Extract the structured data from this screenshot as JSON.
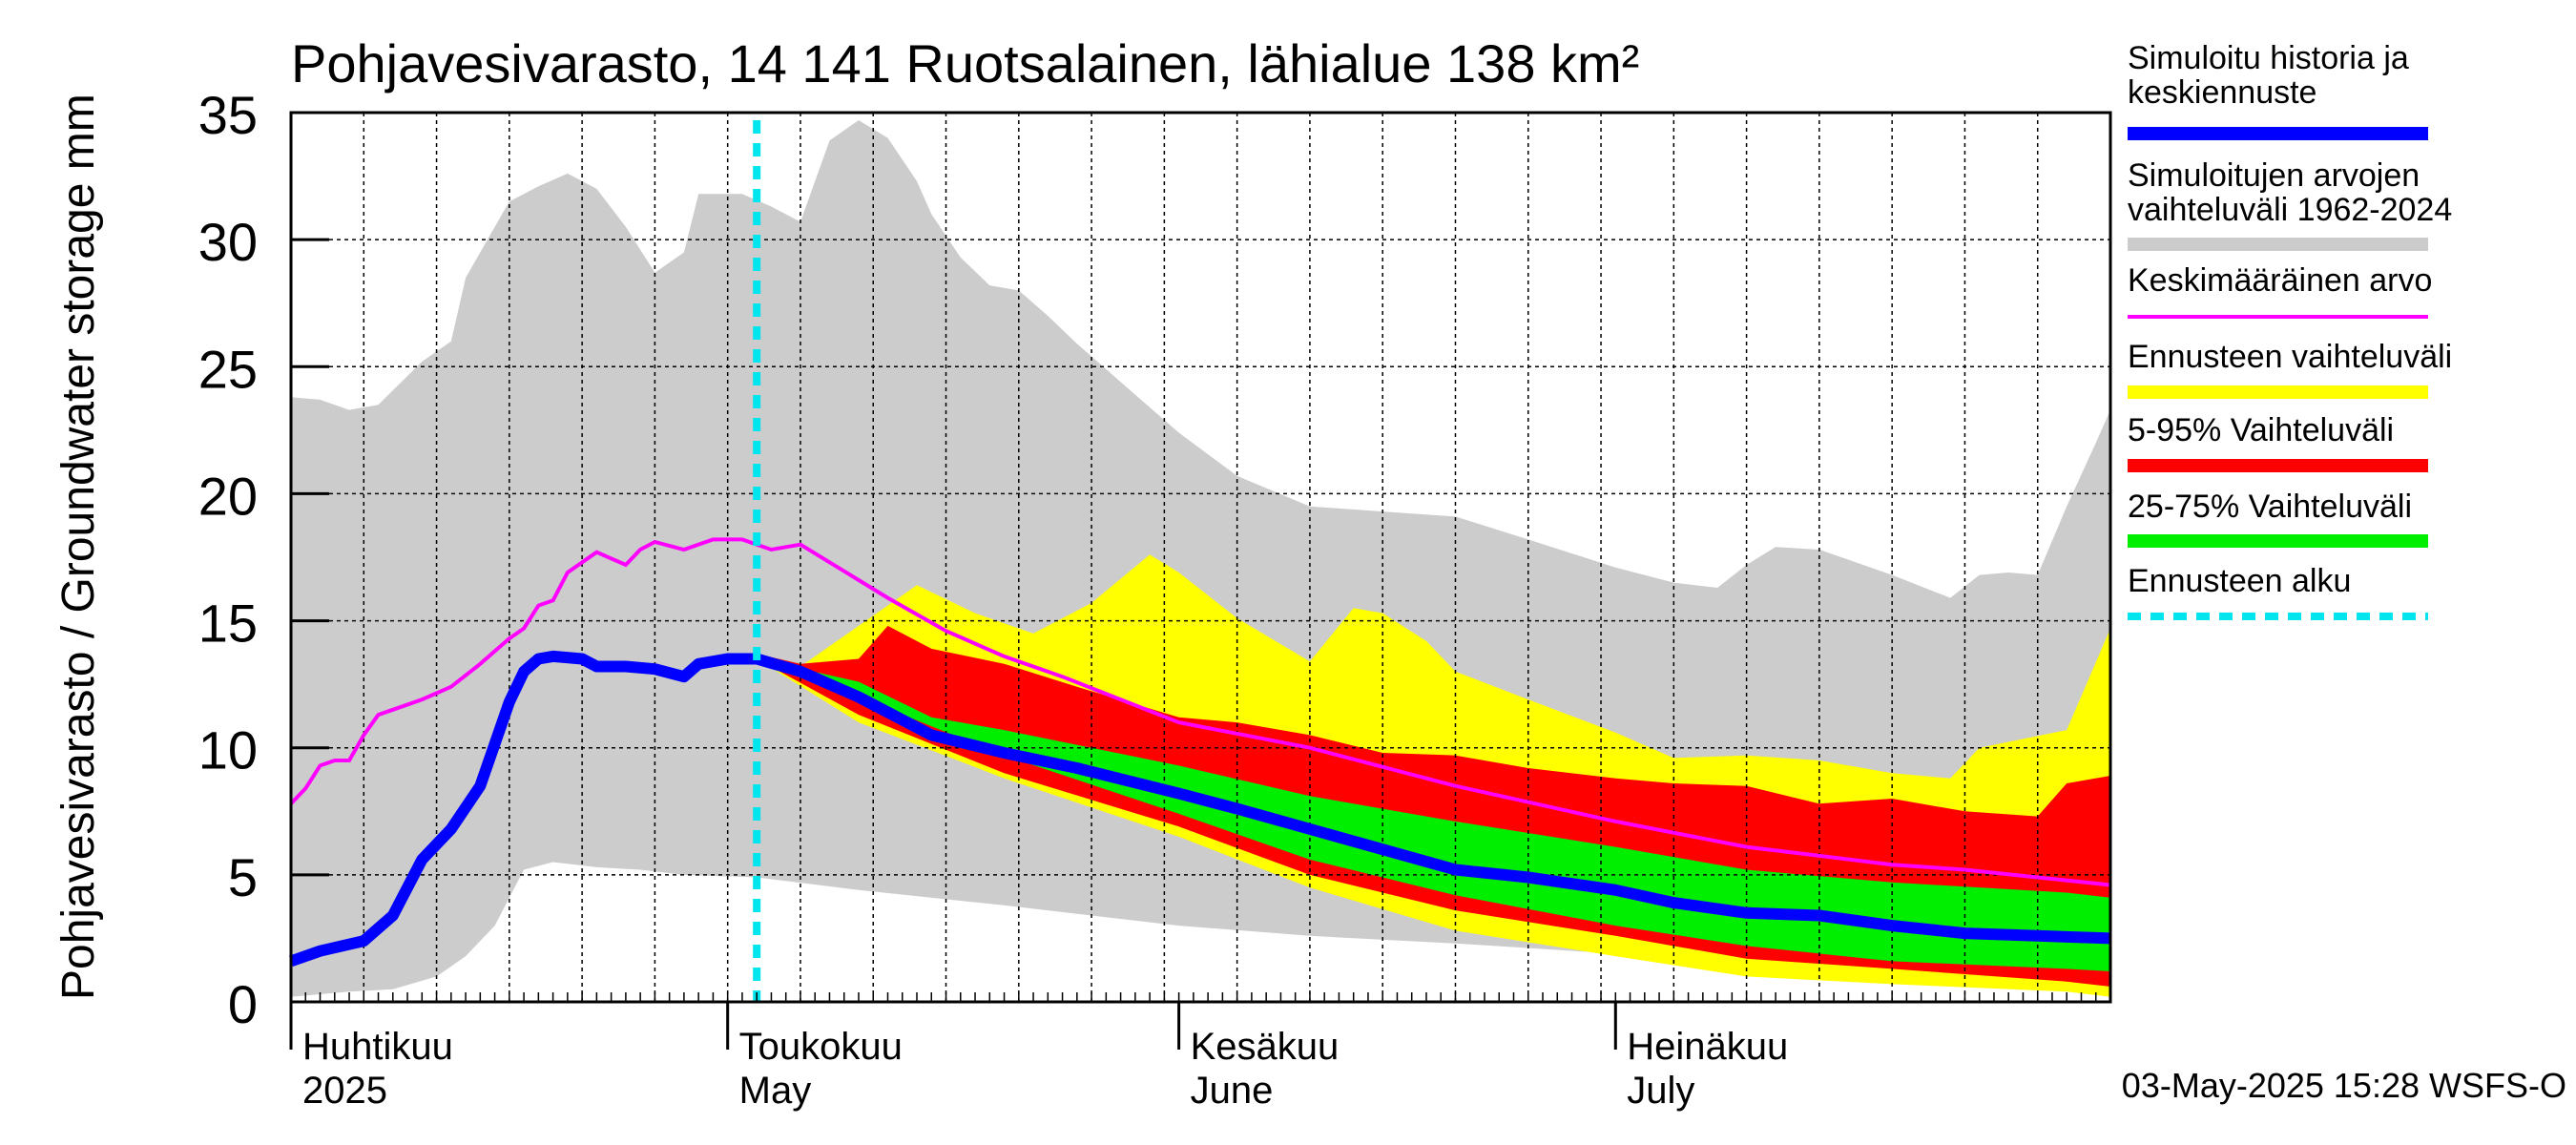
{
  "chart_data": {
    "type": "area",
    "title": "Pohjavesivarasto, 14 141 Ruotsalainen, lähialue 138 km²",
    "ylabel": "Pohjavesivarasto / Groundwater storage   mm",
    "ylim": [
      0,
      35
    ],
    "y_ticks": [
      0,
      5,
      10,
      15,
      20,
      25,
      30,
      35
    ],
    "y_tick_labels": [
      "0",
      "5",
      "10",
      "15",
      "20",
      "25",
      "30",
      "35"
    ],
    "x_range": [
      "2025-04-01",
      "2025-08-04"
    ],
    "x_labels": [
      {
        "date": "2025-04-01",
        "line1": "Huhtikuu",
        "line2": "2025"
      },
      {
        "date": "2025-05-01",
        "line1": "Toukokuu",
        "line2": "May"
      },
      {
        "date": "2025-06-01",
        "line1": "Kesäkuu",
        "line2": "June"
      },
      {
        "date": "2025-07-01",
        "line1": "Heinäkuu",
        "line2": "July"
      }
    ],
    "grid": true,
    "forecast_start": "2025-05-03",
    "footer": "03-May-2025 15:28 WSFS-O",
    "legend_position": "right",
    "legend": [
      {
        "key": "history",
        "label_lines": [
          "Simuloitu historia ja",
          "keskiennuste"
        ],
        "color": "#0000ff"
      },
      {
        "key": "range",
        "label_lines": [
          "Simuloitujen arvojen",
          "vaihteluväli 1962-2024"
        ],
        "color": "#cccccc"
      },
      {
        "key": "mean",
        "label_lines": [
          "Keskimääräinen arvo"
        ],
        "color": "#ff00ff"
      },
      {
        "key": "forecast_range",
        "label_lines": [
          "Ennusteen vaihteluväli"
        ],
        "color": "#ffff00"
      },
      {
        "key": "p5_95",
        "label_lines": [
          "5-95% Vaihteluväli"
        ],
        "color": "#ff0000"
      },
      {
        "key": "p25_75",
        "label_lines": [
          "25-75% Vaihteluväli"
        ],
        "color": "#00ee00"
      },
      {
        "key": "forecast_start",
        "label_lines": [
          "Ennusteen alku"
        ],
        "color": "#00e5ee"
      }
    ],
    "series": [
      {
        "key": "range_upper",
        "dates": [
          "2025-04-01",
          "2025-04-03",
          "2025-04-05",
          "2025-04-07",
          "2025-04-10",
          "2025-04-12",
          "2025-04-13",
          "2025-04-16",
          "2025-04-18",
          "2025-04-20",
          "2025-04-22",
          "2025-04-24",
          "2025-04-26",
          "2025-04-28",
          "2025-04-29",
          "2025-05-02",
          "2025-05-04",
          "2025-05-06",
          "2025-05-08",
          "2025-05-10",
          "2025-05-12",
          "2025-05-14",
          "2025-05-15",
          "2025-05-17",
          "2025-05-19",
          "2025-05-21",
          "2025-05-23",
          "2025-05-25",
          "2025-05-27",
          "2025-05-29",
          "2025-06-01",
          "2025-06-05",
          "2025-06-10",
          "2025-06-15",
          "2025-06-20",
          "2025-06-25",
          "2025-07-01",
          "2025-07-05",
          "2025-07-08",
          "2025-07-10",
          "2025-07-12",
          "2025-07-15",
          "2025-07-20",
          "2025-07-24",
          "2025-07-26",
          "2025-07-28",
          "2025-07-30",
          "2025-08-01",
          "2025-08-03",
          "2025-08-04"
        ],
        "values": [
          23.8,
          23.7,
          23.3,
          23.5,
          25.2,
          26.0,
          28.5,
          31.5,
          32.1,
          32.6,
          32.0,
          30.5,
          28.7,
          29.5,
          31.8,
          31.8,
          31.3,
          30.7,
          33.9,
          34.7,
          34.0,
          32.3,
          31.0,
          29.3,
          28.2,
          28.0,
          27.0,
          25.9,
          24.9,
          23.9,
          22.4,
          20.7,
          19.5,
          19.3,
          19.1,
          18.2,
          17.1,
          16.5,
          16.3,
          17.2,
          17.9,
          17.8,
          16.8,
          15.9,
          16.8,
          16.9,
          16.8,
          19.5,
          22.0,
          23.3
        ]
      },
      {
        "key": "range_lower",
        "dates": [
          "2025-04-01",
          "2025-04-03",
          "2025-04-05",
          "2025-04-08",
          "2025-04-11",
          "2025-04-13",
          "2025-04-15",
          "2025-04-17",
          "2025-04-19",
          "2025-04-22",
          "2025-04-25",
          "2025-04-28",
          "2025-05-03",
          "2025-05-10",
          "2025-05-20",
          "2025-06-01",
          "2025-06-10",
          "2025-06-20",
          "2025-07-01",
          "2025-07-10",
          "2025-07-20",
          "2025-07-25",
          "2025-08-01",
          "2025-08-04"
        ],
        "values": [
          0.2,
          0.3,
          0.4,
          0.5,
          1.0,
          1.8,
          3.0,
          5.2,
          5.5,
          5.3,
          5.2,
          5.0,
          4.9,
          4.4,
          3.8,
          3.0,
          2.6,
          2.3,
          1.9,
          1.6,
          1.3,
          1.2,
          1.0,
          0.9
        ]
      },
      {
        "key": "mean",
        "dates": [
          "2025-04-01",
          "2025-04-02",
          "2025-04-03",
          "2025-04-04",
          "2025-04-05",
          "2025-04-06",
          "2025-04-07",
          "2025-04-08",
          "2025-04-10",
          "2025-04-12",
          "2025-04-14",
          "2025-04-16",
          "2025-04-17",
          "2025-04-18",
          "2025-04-19",
          "2025-04-20",
          "2025-04-22",
          "2025-04-24",
          "2025-04-25",
          "2025-04-26",
          "2025-04-28",
          "2025-04-30",
          "2025-05-02",
          "2025-05-04",
          "2025-05-06",
          "2025-05-08",
          "2025-05-12",
          "2025-05-16",
          "2025-05-20",
          "2025-05-24",
          "2025-06-01",
          "2025-06-10",
          "2025-06-20",
          "2025-07-01",
          "2025-07-10",
          "2025-07-20",
          "2025-07-25",
          "2025-07-30",
          "2025-08-04"
        ],
        "values": [
          7.8,
          8.4,
          9.3,
          9.5,
          9.5,
          10.5,
          11.3,
          11.5,
          11.9,
          12.4,
          13.3,
          14.3,
          14.7,
          15.6,
          15.8,
          16.9,
          17.7,
          17.2,
          17.8,
          18.1,
          17.8,
          18.2,
          18.2,
          17.8,
          18.0,
          17.3,
          15.9,
          14.6,
          13.6,
          12.8,
          11.0,
          10.0,
          8.5,
          7.1,
          6.1,
          5.4,
          5.2,
          4.9,
          4.6
        ]
      },
      {
        "key": "history",
        "dates": [
          "2025-04-01",
          "2025-04-03",
          "2025-04-06",
          "2025-04-08",
          "2025-04-10",
          "2025-04-12",
          "2025-04-14",
          "2025-04-16",
          "2025-04-17",
          "2025-04-18",
          "2025-04-19",
          "2025-04-21",
          "2025-04-22",
          "2025-04-24",
          "2025-04-26",
          "2025-04-28",
          "2025-04-29",
          "2025-05-01",
          "2025-05-03"
        ],
        "values": [
          1.6,
          2.0,
          2.4,
          3.4,
          5.6,
          6.8,
          8.5,
          11.8,
          13.0,
          13.5,
          13.6,
          13.5,
          13.2,
          13.2,
          13.1,
          12.8,
          13.3,
          13.5,
          13.5
        ]
      },
      {
        "key": "forecast_median",
        "dates": [
          "2025-05-03",
          "2025-05-06",
          "2025-05-10",
          "2025-05-15",
          "2025-05-20",
          "2025-05-25",
          "2025-06-01",
          "2025-06-05",
          "2025-06-10",
          "2025-06-15",
          "2025-06-20",
          "2025-06-25",
          "2025-07-01",
          "2025-07-05",
          "2025-07-10",
          "2025-07-15",
          "2025-07-20",
          "2025-07-25",
          "2025-07-30",
          "2025-08-04"
        ],
        "values": [
          13.5,
          13.0,
          12.0,
          10.5,
          9.8,
          9.2,
          8.2,
          7.6,
          6.8,
          6.0,
          5.2,
          4.9,
          4.4,
          3.9,
          3.5,
          3.4,
          3.0,
          2.7,
          2.6,
          2.5
        ]
      },
      {
        "key": "yellow_upper",
        "dates": [
          "2025-05-03",
          "2025-05-06",
          "2025-05-10",
          "2025-05-14",
          "2025-05-18",
          "2025-05-22",
          "2025-05-26",
          "2025-05-30",
          "2025-06-01",
          "2025-06-05",
          "2025-06-10",
          "2025-06-13",
          "2025-06-15",
          "2025-06-18",
          "2025-06-20",
          "2025-06-25",
          "2025-07-01",
          "2025-07-05",
          "2025-07-10",
          "2025-07-15",
          "2025-07-20",
          "2025-07-24",
          "2025-07-26",
          "2025-08-01",
          "2025-08-04"
        ],
        "values": [
          13.5,
          13.2,
          14.8,
          16.4,
          15.3,
          14.5,
          15.7,
          17.6,
          16.9,
          15.1,
          13.4,
          15.5,
          15.3,
          14.2,
          13.0,
          11.9,
          10.6,
          9.6,
          9.7,
          9.5,
          9.0,
          8.8,
          10.0,
          10.7,
          14.7
        ]
      },
      {
        "key": "yellow_lower",
        "dates": [
          "2025-05-03",
          "2025-05-10",
          "2025-05-20",
          "2025-06-01",
          "2025-06-10",
          "2025-06-20",
          "2025-07-01",
          "2025-07-10",
          "2025-07-20",
          "2025-08-01",
          "2025-08-04"
        ],
        "values": [
          13.5,
          11.0,
          8.8,
          6.5,
          4.5,
          2.8,
          1.8,
          1.0,
          0.7,
          0.4,
          0.2
        ]
      },
      {
        "key": "red_upper",
        "dates": [
          "2025-05-03",
          "2025-05-06",
          "2025-05-10",
          "2025-05-12",
          "2025-05-15",
          "2025-05-20",
          "2025-05-25",
          "2025-06-01",
          "2025-06-05",
          "2025-06-10",
          "2025-06-15",
          "2025-06-20",
          "2025-06-25",
          "2025-07-01",
          "2025-07-05",
          "2025-07-10",
          "2025-07-15",
          "2025-07-20",
          "2025-07-25",
          "2025-07-30",
          "2025-08-01",
          "2025-08-04"
        ],
        "values": [
          13.7,
          13.3,
          13.5,
          14.8,
          13.9,
          13.3,
          12.4,
          11.2,
          11.0,
          10.5,
          9.8,
          9.7,
          9.2,
          8.8,
          8.6,
          8.5,
          7.8,
          8.0,
          7.5,
          7.3,
          8.6,
          8.9
        ]
      },
      {
        "key": "red_lower",
        "dates": [
          "2025-05-03",
          "2025-05-10",
          "2025-05-20",
          "2025-06-01",
          "2025-06-10",
          "2025-06-20",
          "2025-07-01",
          "2025-07-10",
          "2025-07-20",
          "2025-08-01",
          "2025-08-04"
        ],
        "values": [
          13.5,
          11.3,
          9.0,
          6.9,
          5.0,
          3.6,
          2.6,
          1.7,
          1.3,
          0.8,
          0.6
        ]
      },
      {
        "key": "green_upper",
        "dates": [
          "2025-05-03",
          "2025-05-10",
          "2025-05-15",
          "2025-05-20",
          "2025-06-01",
          "2025-06-10",
          "2025-06-20",
          "2025-07-01",
          "2025-07-10",
          "2025-07-20",
          "2025-08-01",
          "2025-08-04"
        ],
        "values": [
          13.5,
          12.6,
          11.2,
          10.7,
          9.3,
          8.1,
          7.1,
          6.1,
          5.2,
          4.7,
          4.3,
          4.1
        ]
      },
      {
        "key": "green_lower",
        "dates": [
          "2025-05-03",
          "2025-05-10",
          "2025-05-20",
          "2025-06-01",
          "2025-06-10",
          "2025-06-20",
          "2025-07-01",
          "2025-07-10",
          "2025-07-20",
          "2025-08-01",
          "2025-08-04"
        ],
        "values": [
          13.5,
          12.0,
          9.7,
          7.4,
          5.6,
          4.2,
          3.0,
          2.2,
          1.6,
          1.3,
          1.2
        ]
      }
    ]
  }
}
